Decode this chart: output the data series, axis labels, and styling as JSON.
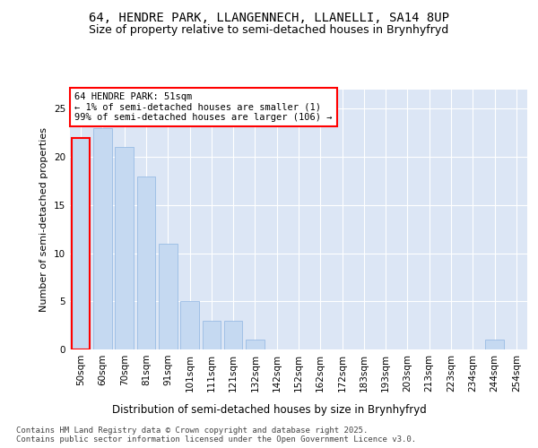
{
  "title1": "64, HENDRE PARK, LLANGENNECH, LLANELLI, SA14 8UP",
  "title2": "Size of property relative to semi-detached houses in Brynhyfryd",
  "xlabel": "Distribution of semi-detached houses by size in Brynhyfryd",
  "ylabel": "Number of semi-detached properties",
  "categories": [
    "50sqm",
    "60sqm",
    "70sqm",
    "81sqm",
    "91sqm",
    "101sqm",
    "111sqm",
    "121sqm",
    "132sqm",
    "142sqm",
    "152sqm",
    "162sqm",
    "172sqm",
    "183sqm",
    "193sqm",
    "203sqm",
    "213sqm",
    "223sqm",
    "234sqm",
    "244sqm",
    "254sqm"
  ],
  "values": [
    22,
    23,
    21,
    18,
    11,
    5,
    3,
    3,
    1,
    0,
    0,
    0,
    0,
    0,
    0,
    0,
    0,
    0,
    0,
    1,
    0
  ],
  "bar_color": "#c5d9f1",
  "bar_edge_color": "#8db4e2",
  "highlight_index": 0,
  "highlight_bar_edge_color": "#ff0000",
  "annotation_text": "64 HENDRE PARK: 51sqm\n← 1% of semi-detached houses are smaller (1)\n99% of semi-detached houses are larger (106) →",
  "annotation_box_color": "#ffffff",
  "annotation_box_edge_color": "#ff0000",
  "ylim": [
    0,
    27
  ],
  "yticks": [
    0,
    5,
    10,
    15,
    20,
    25
  ],
  "background_color": "#dce6f5",
  "footer_text": "Contains HM Land Registry data © Crown copyright and database right 2025.\nContains public sector information licensed under the Open Government Licence v3.0.",
  "title1_fontsize": 10,
  "title2_fontsize": 9,
  "xlabel_fontsize": 8.5,
  "ylabel_fontsize": 8,
  "tick_fontsize": 7.5,
  "annotation_fontsize": 7.5,
  "footer_fontsize": 6.5
}
